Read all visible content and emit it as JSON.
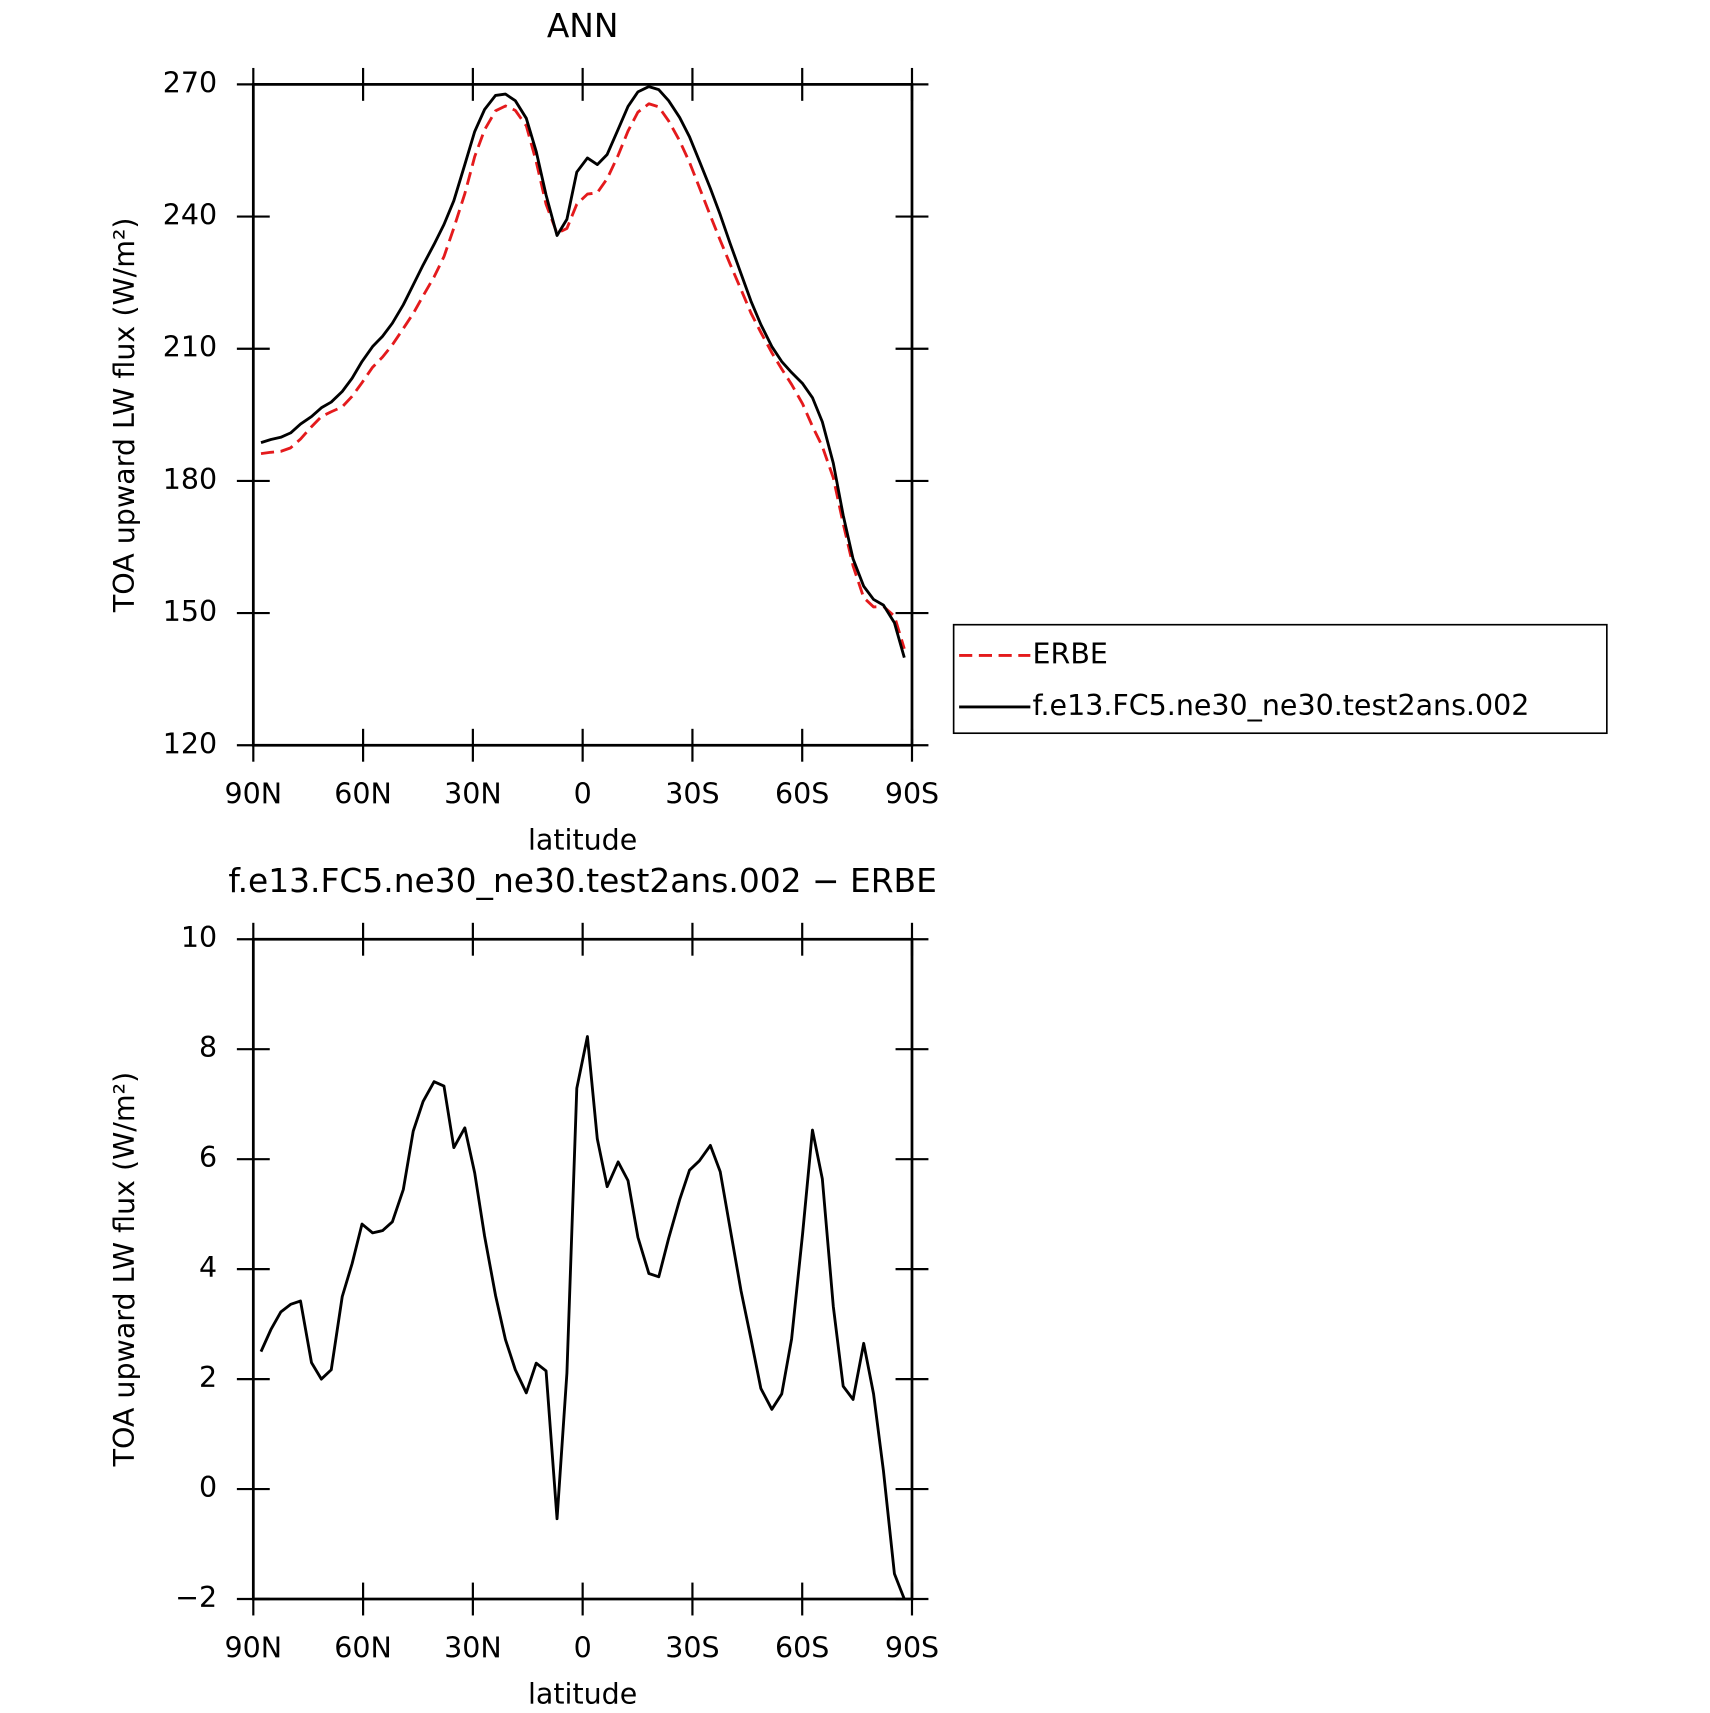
{
  "chart_data": [
    {
      "type": "line",
      "title": "ANN",
      "xlabel": "latitude",
      "ylabel": "TOA upward LW flux (W/m²)",
      "x": [
        87.9,
        85.2,
        82.5,
        79.8,
        77.1,
        74.1,
        71.4,
        68.7,
        65.7,
        63.0,
        60.3,
        57.4,
        54.7,
        52.0,
        49.0,
        46.3,
        43.6,
        40.6,
        37.9,
        35.2,
        32.2,
        29.5,
        26.8,
        23.8,
        21.1,
        18.4,
        15.4,
        12.7,
        10.0,
        7.0,
        4.3,
        1.6,
        -1.3,
        -4.0,
        -6.7,
        -9.7,
        -12.4,
        -15.1,
        -18.1,
        -20.8,
        -23.5,
        -26.5,
        -29.2,
        -31.9,
        -34.9,
        -37.6,
        -40.3,
        -43.3,
        -46.0,
        -48.7,
        -51.7,
        -54.4,
        -57.1,
        -60.1,
        -62.8,
        -65.5,
        -68.5,
        -71.2,
        -73.9,
        -76.8,
        -79.5,
        -82.2,
        -85.2,
        -87.9
      ],
      "series": [
        {
          "name": "ERBE",
          "color": "#e41a1c",
          "line_style": "dashed",
          "values": [
            186.2,
            186.5,
            186.7,
            187.5,
            189.5,
            192.3,
            194.6,
            195.7,
            196.8,
            199.2,
            202.3,
            205.8,
            208.1,
            210.9,
            214.6,
            218.0,
            222.0,
            226.3,
            230.9,
            237.4,
            245.2,
            253.6,
            259.7,
            264.0,
            265.1,
            264.1,
            260.6,
            252.5,
            242.8,
            236.2,
            237.3,
            242.8,
            245.1,
            245.4,
            248.6,
            253.9,
            259.4,
            263.7,
            265.6,
            264.9,
            261.7,
            257.2,
            252.3,
            246.6,
            240.2,
            234.6,
            229.2,
            223.4,
            218.1,
            213.7,
            209.1,
            205.4,
            201.9,
            197.5,
            192.4,
            187.8,
            180.7,
            170.3,
            160.7,
            153.5,
            151.4,
            151.5,
            149.3,
            141.9
          ]
        },
        {
          "name": "f.e13.FC5.ne30_ne30.test2ans.002",
          "color": "#000000",
          "line_style": "solid",
          "values": [
            188.7,
            189.4,
            189.9,
            190.9,
            192.9,
            194.6,
            196.6,
            197.9,
            200.3,
            203.3,
            207.1,
            210.5,
            212.8,
            215.8,
            220.0,
            224.5,
            229.0,
            233.7,
            238.2,
            243.6,
            251.8,
            259.3,
            264.3,
            267.5,
            267.8,
            266.3,
            262.3,
            254.8,
            244.9,
            235.7,
            239.4,
            250.1,
            253.3,
            251.8,
            254.1,
            259.8,
            265.0,
            268.3,
            269.5,
            268.8,
            266.3,
            262.5,
            258.1,
            252.6,
            246.4,
            240.4,
            233.9,
            227.0,
            220.8,
            215.5,
            210.5,
            207.1,
            204.6,
            202.1,
            198.9,
            193.4,
            184.0,
            172.2,
            162.3,
            156.1,
            153.1,
            151.8,
            147.8,
            139.9
          ]
        }
      ],
      "xlim": [
        90,
        -90
      ],
      "xticks": [
        {
          "value": 90,
          "label": "90N"
        },
        {
          "value": 60,
          "label": "60N"
        },
        {
          "value": 30,
          "label": "30N"
        },
        0,
        {
          "value": -30,
          "label": "30S"
        },
        {
          "value": -60,
          "label": "60S"
        },
        {
          "value": -90,
          "label": "90S"
        }
      ],
      "ylim": [
        120,
        270
      ],
      "yticks": [
        120,
        150,
        180,
        210,
        240,
        270
      ],
      "legend": "right"
    },
    {
      "type": "line",
      "title": "f.e13.FC5.ne30_ne30.test2ans.002 − ERBE",
      "xlabel": "latitude",
      "ylabel": "TOA upward LW flux (W/m²)",
      "x": [
        87.9,
        85.2,
        82.5,
        79.8,
        77.1,
        74.1,
        71.4,
        68.7,
        65.7,
        63.0,
        60.3,
        57.4,
        54.7,
        52.0,
        49.0,
        46.3,
        43.6,
        40.6,
        37.9,
        35.2,
        32.2,
        29.5,
        26.8,
        23.8,
        21.1,
        18.4,
        15.4,
        12.7,
        10.0,
        7.0,
        4.3,
        1.6,
        -1.3,
        -4.0,
        -6.7,
        -9.7,
        -12.4,
        -15.1,
        -18.1,
        -20.8,
        -23.5,
        -26.5,
        -29.2,
        -31.9,
        -34.9,
        -37.6,
        -40.3,
        -43.3,
        -46.0,
        -48.7,
        -51.7,
        -54.4,
        -57.1,
        -60.1,
        -62.8,
        -65.5,
        -68.5,
        -71.2,
        -73.9,
        -76.8,
        -79.5,
        -82.2,
        -85.2,
        -87.9
      ],
      "values": [
        2.5,
        2.9,
        3.22,
        3.36,
        3.42,
        2.3,
        2.0,
        2.17,
        3.5,
        4.1,
        4.82,
        4.66,
        4.7,
        4.86,
        5.45,
        6.51,
        7.05,
        7.41,
        7.33,
        6.21,
        6.57,
        5.75,
        4.6,
        3.52,
        2.72,
        2.17,
        1.75,
        2.29,
        2.15,
        -0.54,
        2.11,
        7.29,
        8.23,
        6.37,
        5.5,
        5.95,
        5.61,
        4.58,
        3.92,
        3.86,
        4.56,
        5.26,
        5.8,
        5.97,
        6.25,
        5.77,
        4.74,
        3.6,
        2.73,
        1.83,
        1.45,
        1.73,
        2.73,
        4.64,
        6.53,
        5.64,
        3.32,
        1.87,
        1.63,
        2.65,
        1.73,
        0.33,
        -1.54,
        -2.0
      ],
      "color": "#000000",
      "xlim": [
        90,
        -90
      ],
      "xticks": [
        {
          "value": 90,
          "label": "90N"
        },
        {
          "value": 60,
          "label": "60N"
        },
        {
          "value": 30,
          "label": "30N"
        },
        0,
        {
          "value": -30,
          "label": "30S"
        },
        {
          "value": -60,
          "label": "60S"
        },
        {
          "value": -90,
          "label": "90S"
        }
      ],
      "ylim": [
        -2,
        10
      ],
      "yticks": [
        {
          "value": -2,
          "label": "−2"
        },
        0,
        2,
        4,
        6,
        8,
        10
      ]
    }
  ]
}
